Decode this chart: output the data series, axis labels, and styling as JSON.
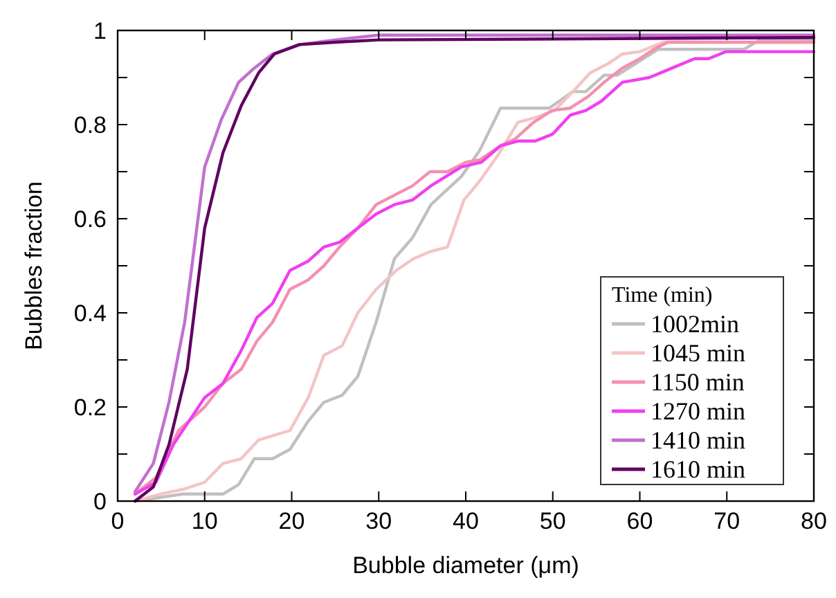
{
  "chart_data": {
    "type": "line",
    "xlabel": "Bubble diameter (μm)",
    "ylabel": "Bubbles fraction",
    "legend_title": "Time (min)",
    "legend": "bottom right",
    "grid": false,
    "line_style": "solid",
    "marker": "none",
    "xlim": [
      0,
      80
    ],
    "xticks": [
      0,
      10,
      20,
      30,
      40,
      50,
      60,
      70,
      80
    ],
    "ylim": [
      0,
      1
    ],
    "yticks": [
      0,
      {
        "value": 0.1,
        "label": null
      },
      0.2,
      {
        "value": 0.3,
        "label": null
      },
      0.4,
      {
        "value": 0.5,
        "label": null
      },
      0.6,
      {
        "value": 0.7,
        "label": null
      },
      0.8,
      {
        "value": 0.9,
        "label": null
      },
      1
    ],
    "series": [
      {
        "name": "1002min",
        "color": "#c0c0c0",
        "x": [
          2,
          7.5,
          12.1,
          13.9,
          15.7,
          17.8,
          19.8,
          21.9,
          23.7,
          25.8,
          27.6,
          29.7,
          31.8,
          33.9,
          36,
          39.5,
          41.6,
          44,
          49.6,
          52.3,
          53.8,
          55.9,
          57.4,
          60,
          62.1,
          72,
          73.6,
          80
        ],
        "values": [
          0,
          0.015,
          0.015,
          0.035,
          0.09,
          0.09,
          0.11,
          0.17,
          0.21,
          0.225,
          0.265,
          0.38,
          0.515,
          0.56,
          0.63,
          0.69,
          0.745,
          0.835,
          0.835,
          0.87,
          0.87,
          0.905,
          0.905,
          0.935,
          0.96,
          0.96,
          0.978,
          0.98
        ]
      },
      {
        "name": "1045 min",
        "color": "#f4c4c4",
        "x": [
          2,
          4.9,
          7.5,
          10,
          12.1,
          14.2,
          16.2,
          18,
          19.8,
          21.9,
          23.7,
          25.8,
          27.6,
          29.7,
          32,
          34,
          35.9,
          37.9,
          39.8,
          41.6,
          43.7,
          46,
          48,
          50.2,
          52.3,
          54.3,
          56.4,
          58,
          60,
          62.7,
          80
        ],
        "values": [
          0,
          0.015,
          0.025,
          0.04,
          0.08,
          0.09,
          0.13,
          0.14,
          0.15,
          0.22,
          0.31,
          0.33,
          0.4,
          0.45,
          0.49,
          0.515,
          0.53,
          0.54,
          0.64,
          0.68,
          0.735,
          0.805,
          0.815,
          0.83,
          0.87,
          0.91,
          0.93,
          0.95,
          0.955,
          0.975,
          0.975
        ]
      },
      {
        "name": "1150 min",
        "color": "#f490b0",
        "x": [
          2,
          4.4,
          7,
          10,
          12.1,
          14.2,
          16,
          17.8,
          19.8,
          21.9,
          23.7,
          25.5,
          27.6,
          29.7,
          31.8,
          33.9,
          35.9,
          37.9,
          40,
          41.6,
          44,
          45.7,
          47.8,
          49.9,
          52,
          54.1,
          55.9,
          58,
          60,
          61.6,
          63.2,
          80
        ],
        "values": [
          0.015,
          0.05,
          0.15,
          0.2,
          0.25,
          0.28,
          0.34,
          0.38,
          0.45,
          0.47,
          0.5,
          0.54,
          0.58,
          0.63,
          0.65,
          0.67,
          0.7,
          0.7,
          0.72,
          0.725,
          0.755,
          0.77,
          0.805,
          0.83,
          0.835,
          0.86,
          0.89,
          0.92,
          0.94,
          0.96,
          0.975,
          0.975
        ]
      },
      {
        "name": "1270 min",
        "color": "#f040f0",
        "x": [
          2,
          4.4,
          6.4,
          10,
          12.1,
          14.2,
          16,
          17.8,
          19.8,
          21.9,
          23.7,
          25.5,
          27.6,
          29.7,
          31.8,
          33.9,
          36,
          39.5,
          41.8,
          44,
          46,
          48,
          50,
          52,
          53.8,
          55.6,
          58,
          61.1,
          63.7,
          66.3,
          67.9,
          69.9,
          80
        ],
        "values": [
          0.015,
          0.04,
          0.12,
          0.22,
          0.25,
          0.32,
          0.39,
          0.42,
          0.49,
          0.51,
          0.54,
          0.55,
          0.58,
          0.61,
          0.63,
          0.64,
          0.67,
          0.71,
          0.72,
          0.755,
          0.765,
          0.765,
          0.78,
          0.82,
          0.83,
          0.85,
          0.89,
          0.9,
          0.92,
          0.94,
          0.94,
          0.955,
          0.955
        ]
      },
      {
        "name": "1410 min",
        "color": "#c070d0",
        "x": [
          2,
          4.1,
          5.9,
          7.7,
          10,
          11.9,
          13.9,
          15.7,
          17.8,
          20.9,
          25,
          30,
          80
        ],
        "values": [
          0.02,
          0.08,
          0.21,
          0.38,
          0.71,
          0.81,
          0.89,
          0.92,
          0.95,
          0.97,
          0.98,
          0.99,
          0.99
        ]
      },
      {
        "name": "1610 min",
        "color": "#600060",
        "x": [
          2,
          4.1,
          5.9,
          8,
          10,
          12.1,
          14.2,
          16.2,
          18,
          20.9,
          25,
          30,
          80
        ],
        "values": [
          0,
          0.03,
          0.12,
          0.28,
          0.58,
          0.74,
          0.84,
          0.91,
          0.95,
          0.97,
          0.975,
          0.98,
          0.985
        ]
      }
    ]
  }
}
